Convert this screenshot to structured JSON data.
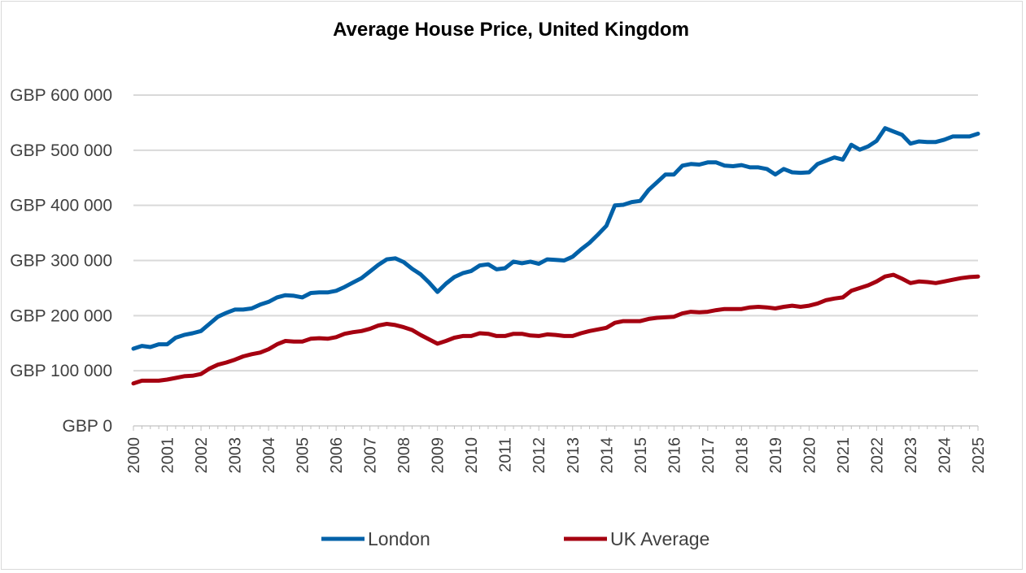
{
  "chart_data": {
    "type": "line",
    "title": "Average House Price, United Kingdom",
    "xlabel": "",
    "ylabel": "",
    "ylim": [
      0,
      600000
    ],
    "yticks": [
      "GBP 0",
      "GBP 100 000",
      "GBP 200 000",
      "GBP 300 000",
      "GBP 400 000",
      "GBP 500 000",
      "GBP 600 000"
    ],
    "ytick_values": [
      0,
      100000,
      200000,
      300000,
      400000,
      500000,
      600000
    ],
    "x_start_year": 2000,
    "x_step": "quarter",
    "xticks": [
      "2000",
      "2001",
      "2002",
      "2003",
      "2004",
      "2005",
      "2006",
      "2007",
      "2008",
      "2009",
      "2010",
      "2011",
      "2012",
      "2013",
      "2014",
      "2015",
      "2016",
      "2017",
      "2018",
      "2019",
      "2020",
      "2021",
      "2022",
      "2023",
      "2024",
      "2025"
    ],
    "grid": "horizontal",
    "legend_position": "bottom",
    "series": [
      {
        "name": "London",
        "color": "#0061a8",
        "values": [
          140000,
          145000,
          143000,
          148000,
          148000,
          160000,
          165000,
          168000,
          172000,
          185000,
          198000,
          205000,
          211000,
          211000,
          213000,
          220000,
          225000,
          233000,
          237000,
          236000,
          233000,
          241000,
          242000,
          242000,
          245000,
          252000,
          260000,
          268000,
          280000,
          292000,
          302000,
          304000,
          297000,
          285000,
          275000,
          260000,
          243000,
          258000,
          270000,
          277000,
          281000,
          291000,
          293000,
          284000,
          286000,
          298000,
          295000,
          298000,
          294000,
          302000,
          301000,
          300000,
          307000,
          320000,
          332000,
          347000,
          363000,
          400000,
          401000,
          406000,
          408000,
          428000,
          442000,
          456000,
          456000,
          472000,
          475000,
          474000,
          478000,
          478000,
          472000,
          471000,
          473000,
          469000,
          469000,
          466000,
          456000,
          466000,
          460000,
          459000,
          460000,
          475000,
          481000,
          487000,
          483000,
          510000,
          501000,
          507000,
          517000,
          540000,
          534000,
          528000,
          512000,
          516000,
          515000,
          515000,
          519000,
          525000,
          525000,
          525000,
          530000
        ]
      },
      {
        "name": "UK Average",
        "color": "#a50010",
        "values": [
          77000,
          82000,
          82000,
          82000,
          84000,
          87000,
          90000,
          91000,
          94000,
          104000,
          111000,
          115000,
          120000,
          126000,
          130000,
          133000,
          139000,
          148000,
          154000,
          153000,
          153000,
          158000,
          159000,
          158000,
          161000,
          167000,
          170000,
          172000,
          176000,
          182000,
          185000,
          183000,
          179000,
          174000,
          165000,
          157000,
          149000,
          154000,
          160000,
          163000,
          163000,
          168000,
          167000,
          163000,
          163000,
          167000,
          167000,
          164000,
          163000,
          166000,
          165000,
          163000,
          163000,
          168000,
          172000,
          175000,
          178000,
          187000,
          190000,
          190000,
          190000,
          194000,
          196000,
          197000,
          198000,
          204000,
          207000,
          206000,
          207000,
          210000,
          212000,
          212000,
          212000,
          215000,
          216000,
          215000,
          213000,
          216000,
          218000,
          216000,
          218000,
          222000,
          228000,
          231000,
          233000,
          245000,
          250000,
          255000,
          262000,
          271000,
          274000,
          267000,
          259000,
          262000,
          261000,
          259000,
          262000,
          265000,
          268000,
          270000,
          271000
        ]
      }
    ]
  }
}
